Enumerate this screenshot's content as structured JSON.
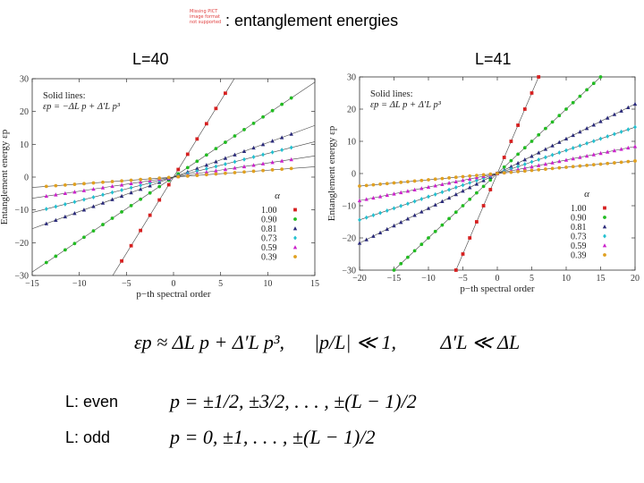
{
  "header": {
    "missing_picture_lines": [
      "Missing PICT",
      "image format",
      "not supported"
    ],
    "title": ": entanglement energies"
  },
  "panels": {
    "left_label": "L=40",
    "right_label": "L=41"
  },
  "formulas": {
    "main": "εp ≈ ΔL p + Δ′L p³,      |p/L| ≪ 1,         Δ′L ≪ ΔL",
    "even_label": "L: even",
    "even_formula": "p = ±1/2, ±3/2, . . . , ±(L − 1)/2",
    "odd_label": "L: odd",
    "odd_formula": "p = 0, ±1, . . . , ±(L − 1)/2"
  },
  "chart_data": [
    {
      "type": "scatter",
      "title": "L=40",
      "xlabel": "p−th spectral order",
      "ylabel": "Entanglement energy εp",
      "xlim": [
        -15,
        15
      ],
      "ylim": [
        -30,
        30
      ],
      "xticks": [
        -15,
        -10,
        -5,
        0,
        5,
        10,
        15
      ],
      "yticks": [
        -30,
        -20,
        -10,
        0,
        10,
        20,
        30
      ],
      "annotation": [
        "Solid lines:",
        "εp = −ΔL p + Δ′L p³"
      ],
      "legend_title": "α",
      "legend_position": "bottom-right",
      "x": [
        -13.5,
        -12.5,
        -11.5,
        -10.5,
        -9.5,
        -8.5,
        -7.5,
        -6.5,
        -5.5,
        -4.5,
        -3.5,
        -2.5,
        -1.5,
        -0.5,
        0.5,
        1.5,
        2.5,
        3.5,
        4.5,
        5.5,
        6.5,
        7.5,
        8.5,
        9.5,
        10.5,
        11.5,
        12.5
      ],
      "series": [
        {
          "name": "1.00",
          "color": "#d62020",
          "marker": "square",
          "slope": 4.65
        },
        {
          "name": "0.90",
          "color": "#22bb22",
          "marker": "circle",
          "slope": 1.93
        },
        {
          "name": "0.81",
          "color": "#2a2a7a",
          "marker": "triangle",
          "slope": 1.05
        },
        {
          "name": "0.73",
          "color": "#22c0d0",
          "marker": "diamond",
          "slope": 0.72
        },
        {
          "name": "0.59",
          "color": "#cc22cc",
          "marker": "triangle",
          "slope": 0.43
        },
        {
          "name": "0.39",
          "color": "#e0a020",
          "marker": "circle",
          "slope": 0.21
        }
      ]
    },
    {
      "type": "scatter",
      "title": "L=41",
      "xlabel": "p−th spectral order",
      "ylabel": "Entanglement energy εp",
      "xlim": [
        -20,
        20
      ],
      "ylim": [
        -30,
        30
      ],
      "xticks": [
        -20,
        -15,
        -10,
        -5,
        0,
        5,
        10,
        15,
        20
      ],
      "yticks": [
        -30,
        -20,
        -10,
        0,
        10,
        20,
        30
      ],
      "annotation": [
        "Solid lines:",
        "εp = ΔL p + Δ′L p³"
      ],
      "legend_title": "α",
      "legend_position": "bottom-right",
      "x": [
        -20,
        -19,
        -18,
        -17,
        -16,
        -15,
        -14,
        -13,
        -12,
        -11,
        -10,
        -9,
        -8,
        -7,
        -6,
        -5,
        -4,
        -3,
        -2,
        -1,
        0,
        1,
        2,
        3,
        4,
        5,
        6,
        7,
        8,
        9,
        10,
        11,
        12,
        13,
        14,
        15,
        16,
        17,
        18,
        19,
        20
      ],
      "series": [
        {
          "name": "1.00",
          "color": "#d62020",
          "marker": "square",
          "slope": 5.0
        },
        {
          "name": "0.90",
          "color": "#22bb22",
          "marker": "circle",
          "slope": 2.0
        },
        {
          "name": "0.81",
          "color": "#2a2a7a",
          "marker": "triangle",
          "slope": 1.08
        },
        {
          "name": "0.73",
          "color": "#22c0d0",
          "marker": "diamond",
          "slope": 0.72
        },
        {
          "name": "0.59",
          "color": "#cc22cc",
          "marker": "triangle",
          "slope": 0.42
        },
        {
          "name": "0.39",
          "color": "#e0a020",
          "marker": "circle",
          "slope": 0.195
        }
      ]
    }
  ]
}
